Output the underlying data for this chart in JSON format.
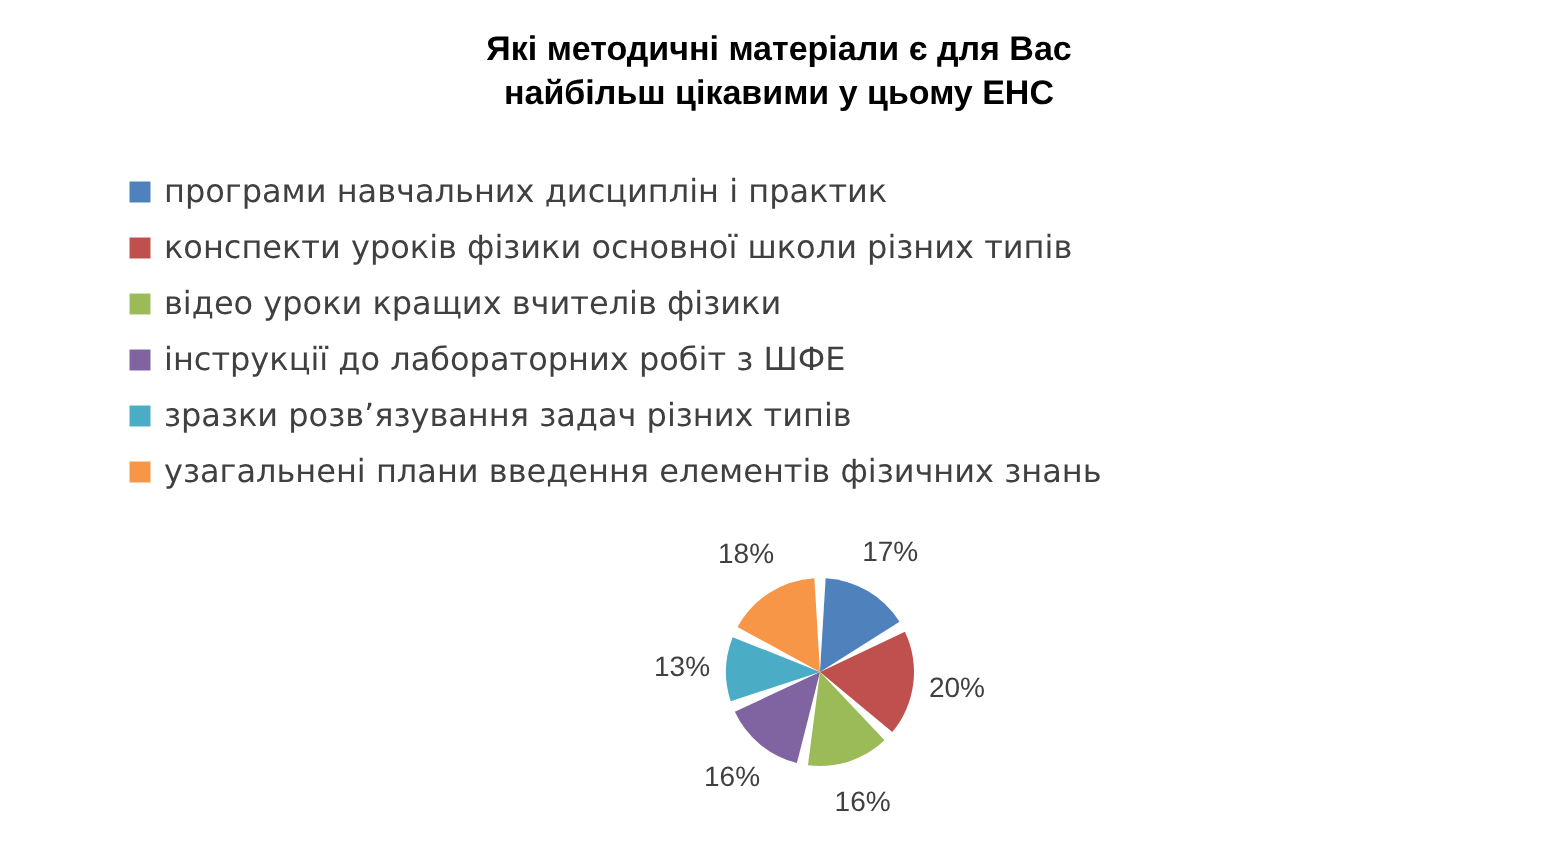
{
  "chart_data": {
    "type": "pie",
    "title": "Які методичні матеріали є для Вас найбільш цікавими у цьому ЕНС",
    "categories": [
      "програми навчальних дисциплін і практик",
      "конспекти уроків фізики основної школи різних типів",
      "відео уроки кращих вчителів фізики",
      "інструкції до лабораторних робіт з ШФЕ",
      "зразки розв’язування задач різних типів",
      "узагальнені плани введення елементів фізичних знань"
    ],
    "values": [
      17,
      20,
      16,
      16,
      13,
      18
    ],
    "colors": [
      "#4f81bd",
      "#c0504d",
      "#9bbb59",
      "#8064a2",
      "#4bacc6",
      "#f79646"
    ],
    "value_labels": [
      "17%",
      "20%",
      "16%",
      "16%",
      "13%",
      "18%"
    ],
    "legend": "top"
  }
}
